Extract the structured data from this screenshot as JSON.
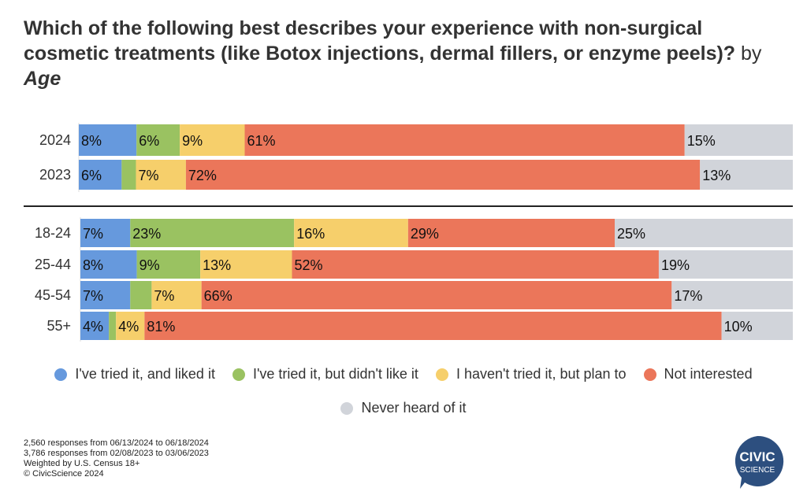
{
  "title": {
    "main": "Which of the following best describes your experience with non-surgical cosmetic treatments (like Botox injections, dermal fillers, or enzyme peels)?",
    "by": "by",
    "group": "Age"
  },
  "chart_data": {
    "type": "bar",
    "orientation": "horizontal",
    "stacked": true,
    "xlim": [
      0,
      100
    ],
    "grid": false,
    "legend_position": "bottom",
    "categories": [
      "2024",
      "2023",
      "18-24",
      "25-44",
      "45-54",
      "55+"
    ],
    "groups": [
      [
        "2024",
        "2023"
      ],
      [
        "18-24",
        "25-44",
        "45-54",
        "55+"
      ]
    ],
    "series": [
      {
        "name": "I've tried it, and liked it",
        "color": "#6699dd",
        "values": [
          8,
          6,
          7,
          8,
          7,
          4
        ]
      },
      {
        "name": "I've tried it, but didn't like it",
        "color": "#9ac261",
        "values": [
          6,
          2,
          23,
          9,
          3,
          1
        ]
      },
      {
        "name": "I haven't tried it, but plan to",
        "color": "#f6cf6b",
        "values": [
          9,
          7,
          16,
          13,
          7,
          4
        ]
      },
      {
        "name": "Not interested",
        "color": "#eb765a",
        "values": [
          61,
          72,
          29,
          52,
          66,
          81
        ]
      },
      {
        "name": "Never heard of it",
        "color": "#d1d4da",
        "values": [
          15,
          13,
          25,
          19,
          17,
          10
        ]
      }
    ],
    "labelled": [
      [
        true,
        true,
        true,
        true,
        true,
        true
      ],
      [
        true,
        false,
        true,
        true,
        false,
        false
      ],
      [
        true,
        true,
        true,
        true,
        true,
        true
      ],
      [
        true,
        true,
        true,
        true,
        true,
        true
      ],
      [
        true,
        true,
        true,
        true,
        true,
        true
      ]
    ]
  },
  "footer": [
    "2,560 responses from 06/13/2024 to 06/18/2024",
    "3,786 responses from 02/08/2023 to 03/06/2023",
    "Weighted by U.S. Census 18+",
    "© CivicScience 2024"
  ],
  "logo": {
    "line1": "CIVIC",
    "line2": "SCIENCE",
    "color": "#2d4f7f"
  }
}
